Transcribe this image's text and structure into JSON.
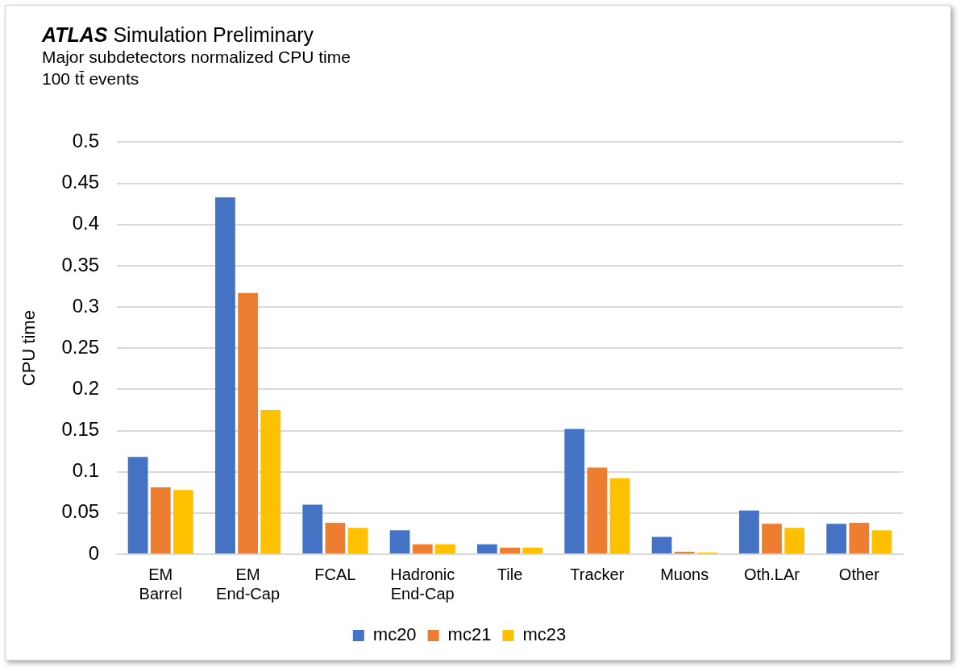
{
  "chart_data": {
    "type": "bar",
    "title": "ATLAS Simulation Preliminary",
    "subtitle": "Major subdetectors normalized CPU time",
    "annotations": [
      "100 tt̄ events"
    ],
    "ylabel": "CPU time",
    "categories": [
      "EM Barrel",
      "EM End-Cap",
      "FCAL",
      "Hadronic End-Cap",
      "Tile",
      "Tracker",
      "Muons",
      "Oth.LAr",
      "Other"
    ],
    "series": [
      {
        "name": "mc20",
        "color": "#4472c4",
        "values": [
          0.118,
          0.433,
          0.06,
          0.029,
          0.012,
          0.152,
          0.021,
          0.053,
          0.037
        ]
      },
      {
        "name": "mc21",
        "color": "#ed7d31",
        "values": [
          0.081,
          0.317,
          0.038,
          0.012,
          0.008,
          0.105,
          0.003,
          0.037,
          0.038
        ]
      },
      {
        "name": "mc23",
        "color": "#ffc000",
        "values": [
          0.078,
          0.175,
          0.032,
          0.012,
          0.008,
          0.092,
          0.002,
          0.032,
          0.029
        ]
      }
    ],
    "ylim": [
      0,
      0.5
    ],
    "yticks": [
      0,
      0.05,
      0.1,
      0.15,
      0.2,
      0.25,
      0.3,
      0.35,
      0.4,
      0.45,
      0.5
    ],
    "grid": "y",
    "legend": "bottom"
  }
}
